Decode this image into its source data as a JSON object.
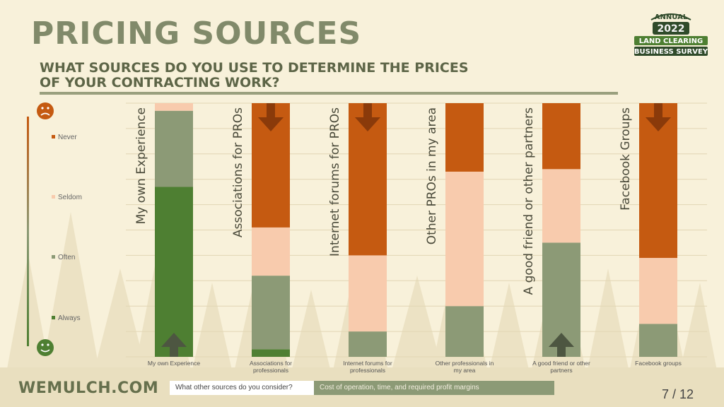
{
  "header": {
    "title": "PRICING SOURCES",
    "subtitle_line1": "WHAT SOURCES DO YOU USE TO DETERMINE THE PRICES",
    "subtitle_line2": "OF YOUR CONTRACTING WORK?"
  },
  "logo": {
    "annual": "ANNUAL",
    "year": "2022",
    "line1": "LAND CLEARING",
    "line2": "BUSINESS SURVEY"
  },
  "footer": {
    "brand": "WEMULCH.COM",
    "question": "What other sources do you consider?",
    "answer": "Cost of operation, time, and required profit margins",
    "page": "7 / 12"
  },
  "colors": {
    "never": "#c55a11",
    "seldom": "#f8cbad",
    "often": "#8c9a76",
    "always": "#4e7f32",
    "arrow": "#8a3a0a",
    "arrow_up": "#4d5641",
    "background": "#f8f1da"
  },
  "chart_data": {
    "type": "bar",
    "stacked": true,
    "normalized": true,
    "ylim": [
      0,
      100
    ],
    "legend": [
      "Never",
      "Seldom",
      "Often",
      "Always"
    ],
    "categories": [
      "My own Experience",
      "Associations for professionals",
      "Internet forums for professionals",
      "Other professionals in my area",
      "A good friend or other partners",
      "Facebook groups"
    ],
    "bar_titles": [
      "My own Experience",
      "Associations for PROs",
      "Internet forums for PROs",
      "Other PROs in my area",
      "A good friend or other partners",
      "Facebook Groups"
    ],
    "series": [
      {
        "name": "Always",
        "values": [
          67,
          3,
          0,
          0,
          0,
          0
        ]
      },
      {
        "name": "Often",
        "values": [
          30,
          29,
          10,
          20,
          45,
          13
        ]
      },
      {
        "name": "Seldom",
        "values": [
          3,
          19,
          30,
          53,
          29,
          26
        ]
      },
      {
        "name": "Never",
        "values": [
          0,
          49,
          60,
          27,
          26,
          61
        ]
      }
    ],
    "arrows": [
      "up",
      "down",
      "down",
      "none",
      "up",
      "down"
    ]
  }
}
